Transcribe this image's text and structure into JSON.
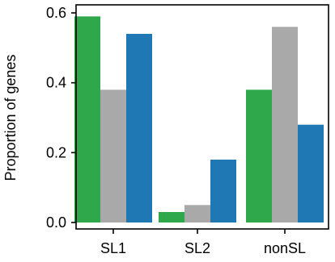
{
  "chart_data": {
    "type": "bar",
    "title": "",
    "xlabel": "",
    "ylabel": "Proportion of genes",
    "categories": [
      "SL1",
      "SL2",
      "nonSL"
    ],
    "series": [
      {
        "color": "#2ea84a",
        "values": [
          0.59,
          0.03,
          0.38
        ]
      },
      {
        "color": "#a9a9a9",
        "values": [
          0.38,
          0.05,
          0.56
        ]
      },
      {
        "color": "#1f77b4",
        "values": [
          0.54,
          0.18,
          0.28
        ]
      }
    ],
    "ylim": [
      0,
      0.6
    ],
    "yticks": [
      0.0,
      0.2,
      0.4,
      0.6
    ],
    "ytick_labels": [
      "0.0",
      "0.2",
      "0.4",
      "0.6"
    ],
    "grid": false,
    "legend": "none"
  }
}
